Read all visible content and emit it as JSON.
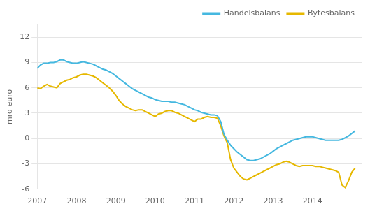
{
  "chart_data": {
    "type": "line",
    "ylabel": "mrd euro",
    "x": [
      2007.0,
      2007.083,
      2007.167,
      2007.25,
      2007.333,
      2007.417,
      2007.5,
      2007.583,
      2007.667,
      2007.75,
      2007.833,
      2007.917,
      2008.0,
      2008.083,
      2008.167,
      2008.25,
      2008.333,
      2008.417,
      2008.5,
      2008.583,
      2008.667,
      2008.75,
      2008.833,
      2008.917,
      2009.0,
      2009.083,
      2009.167,
      2009.25,
      2009.333,
      2009.417,
      2009.5,
      2009.583,
      2009.667,
      2009.75,
      2009.833,
      2009.917,
      2010.0,
      2010.083,
      2010.167,
      2010.25,
      2010.333,
      2010.417,
      2010.5,
      2010.583,
      2010.667,
      2010.75,
      2010.833,
      2010.917,
      2011.0,
      2011.083,
      2011.167,
      2011.25,
      2011.333,
      2011.417,
      2011.5,
      2011.583,
      2011.667,
      2011.75,
      2011.833,
      2011.917,
      2012.0,
      2012.083,
      2012.167,
      2012.25,
      2012.333,
      2012.417,
      2012.5,
      2012.583,
      2012.667,
      2012.75,
      2012.833,
      2012.917,
      2013.0,
      2013.083,
      2013.167,
      2013.25,
      2013.333,
      2013.417,
      2013.5,
      2013.583,
      2013.667,
      2013.75,
      2013.833,
      2013.917,
      2014.0,
      2014.083,
      2014.167,
      2014.25,
      2014.333,
      2014.417,
      2014.5,
      2014.583,
      2014.667,
      2014.75,
      2014.833,
      2014.917,
      2015.0,
      2015.083
    ],
    "series": [
      {
        "name": "Handelsbalans",
        "color": "#45b8e0",
        "values": [
          8.3,
          8.7,
          8.9,
          8.9,
          9.0,
          9.0,
          9.1,
          9.3,
          9.3,
          9.1,
          9.0,
          8.9,
          8.9,
          9.0,
          9.1,
          9.0,
          8.9,
          8.8,
          8.6,
          8.4,
          8.2,
          8.1,
          7.9,
          7.7,
          7.4,
          7.1,
          6.8,
          6.5,
          6.2,
          5.9,
          5.7,
          5.5,
          5.3,
          5.1,
          4.9,
          4.8,
          4.6,
          4.5,
          4.4,
          4.4,
          4.4,
          4.3,
          4.3,
          4.2,
          4.1,
          4.0,
          3.8,
          3.6,
          3.4,
          3.3,
          3.1,
          3.0,
          2.9,
          2.8,
          2.8,
          2.7,
          2.0,
          0.5,
          -0.2,
          -0.8,
          -1.2,
          -1.6,
          -1.9,
          -2.2,
          -2.5,
          -2.6,
          -2.6,
          -2.5,
          -2.4,
          -2.2,
          -2.0,
          -1.8,
          -1.5,
          -1.2,
          -1.0,
          -0.8,
          -0.6,
          -0.4,
          -0.2,
          -0.1,
          0.0,
          0.1,
          0.2,
          0.2,
          0.2,
          0.1,
          0.0,
          -0.1,
          -0.2,
          -0.2,
          -0.2,
          -0.2,
          -0.2,
          -0.1,
          0.1,
          0.3,
          0.6,
          0.9
        ]
      },
      {
        "name": "Bytesbalans",
        "color": "#e6b800",
        "values": [
          6.0,
          5.9,
          6.2,
          6.4,
          6.2,
          6.1,
          6.0,
          6.5,
          6.7,
          6.9,
          7.0,
          7.2,
          7.3,
          7.5,
          7.6,
          7.6,
          7.5,
          7.4,
          7.2,
          6.9,
          6.6,
          6.3,
          6.0,
          5.6,
          5.1,
          4.5,
          4.1,
          3.8,
          3.6,
          3.4,
          3.3,
          3.4,
          3.4,
          3.2,
          3.0,
          2.8,
          2.6,
          2.9,
          3.0,
          3.2,
          3.3,
          3.3,
          3.1,
          3.0,
          2.8,
          2.6,
          2.4,
          2.2,
          2.0,
          2.3,
          2.3,
          2.5,
          2.6,
          2.5,
          2.5,
          2.4,
          1.5,
          0.3,
          -0.5,
          -2.5,
          -3.5,
          -4.0,
          -4.5,
          -4.8,
          -4.9,
          -4.7,
          -4.5,
          -4.3,
          -4.1,
          -3.9,
          -3.7,
          -3.5,
          -3.3,
          -3.1,
          -3.0,
          -2.8,
          -2.7,
          -2.8,
          -3.0,
          -3.2,
          -3.3,
          -3.2,
          -3.2,
          -3.2,
          -3.2,
          -3.3,
          -3.3,
          -3.4,
          -3.5,
          -3.6,
          -3.7,
          -3.8,
          -4.0,
          -5.5,
          -5.8,
          -5.0,
          -4.0,
          -3.5
        ]
      }
    ],
    "xlim": [
      2007.0,
      2015.25
    ],
    "xticks": [
      2007,
      2008,
      2009,
      2010,
      2011,
      2012,
      2013,
      2014
    ],
    "ylim": [
      -6,
      13.5
    ],
    "yticks": [
      -6,
      -3,
      0,
      3,
      6,
      9,
      12
    ],
    "grid": "y",
    "legend": "upper right"
  }
}
